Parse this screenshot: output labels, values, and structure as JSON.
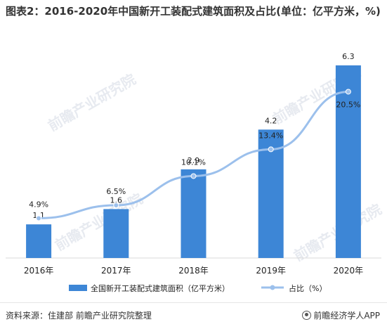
{
  "title": "图表2：2016-2020年中国新开工装配式建筑面积及占比(单位：亿平方米，%)",
  "source": "资料来源：住建部 前瞻产业研究院整理",
  "brand": "前瞻经济学人APP",
  "watermark": "前瞻产业研究院",
  "colors": {
    "bar": "#3d86d6",
    "line": "#9cc0ec",
    "marker": "#9cc0ec"
  },
  "chart_data": {
    "type": "bar+line",
    "categories": [
      "2016年",
      "2017年",
      "2018年",
      "2019年",
      "2020年"
    ],
    "series": [
      {
        "name": "全国新开工装配式建筑面积（亿平方米）",
        "type": "bar",
        "values": [
          1.1,
          1.6,
          2.9,
          4.2,
          6.3
        ],
        "labels": [
          "1.1",
          "1.6",
          "2.9",
          "4.2",
          "6.3"
        ]
      },
      {
        "name": "占比（%）",
        "type": "line",
        "values": [
          4.9,
          6.5,
          10.1,
          13.4,
          20.5
        ],
        "labels": [
          "4.9%",
          "6.5%",
          "10.1%",
          "13.4%",
          "20.5%"
        ]
      }
    ],
    "bar_ylim": [
      0,
      6.3
    ],
    "line_ylim": [
      0,
      26
    ],
    "legend_position": "bottom",
    "grid": false
  }
}
